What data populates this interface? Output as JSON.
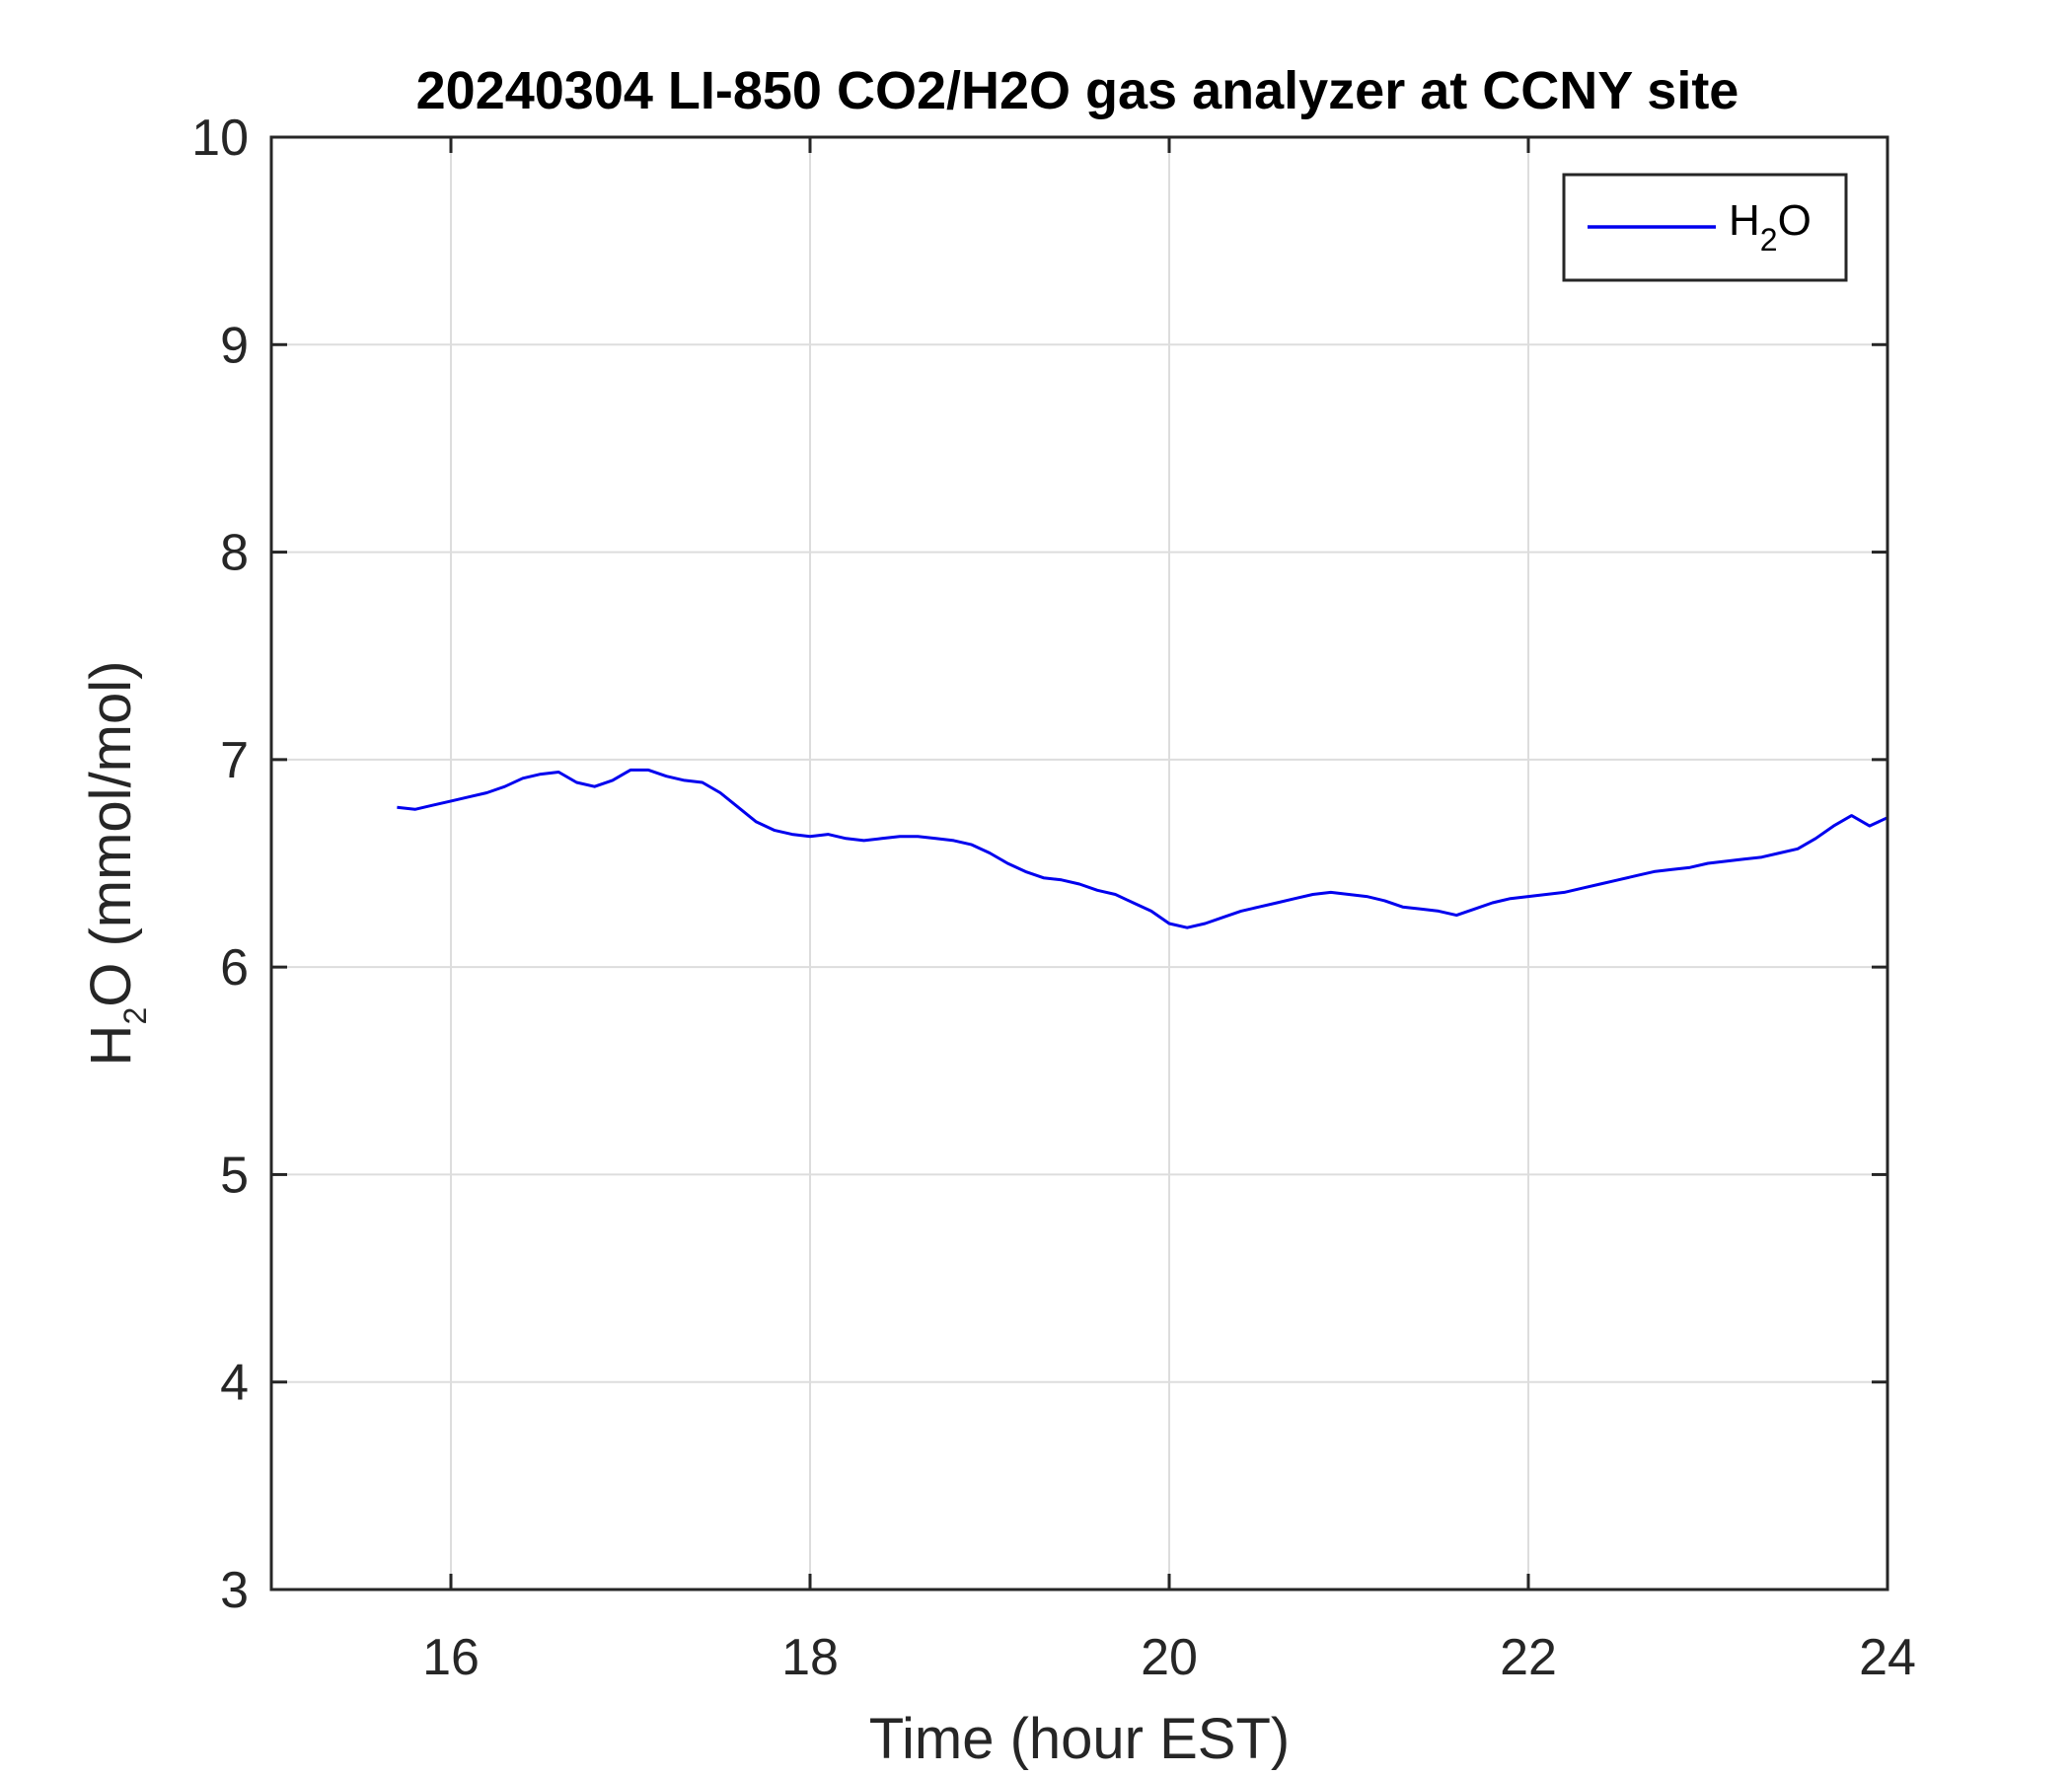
{
  "chart_data": {
    "type": "line",
    "title": "20240304 LI-850 CO2/H2O gas analyzer at CCNY site",
    "xlabel": "Time (hour EST)",
    "ylabel": {
      "prefix": "H",
      "sub": "2",
      "suffix": "O (mmol/mol)"
    },
    "xlim": [
      15,
      24
    ],
    "ylim": [
      3,
      10
    ],
    "xticks": [
      16,
      18,
      20,
      22,
      24
    ],
    "yticks": [
      3,
      4,
      5,
      6,
      7,
      8,
      9,
      10
    ],
    "grid": true,
    "legend_position": "top-right",
    "colors": {
      "line": "#0000ee",
      "grid": "#dddddd",
      "axis": "#262626"
    },
    "series": [
      {
        "name": {
          "prefix": "H",
          "sub": "2",
          "suffix": "O"
        },
        "x": [
          15.7,
          15.8,
          15.9,
          16.0,
          16.1,
          16.2,
          16.3,
          16.4,
          16.5,
          16.6,
          16.7,
          16.8,
          16.9,
          17.0,
          17.1,
          17.2,
          17.3,
          17.4,
          17.5,
          17.6,
          17.7,
          17.8,
          17.9,
          18.0,
          18.1,
          18.2,
          18.3,
          18.4,
          18.5,
          18.6,
          18.7,
          18.8,
          18.9,
          19.0,
          19.1,
          19.2,
          19.3,
          19.4,
          19.5,
          19.6,
          19.7,
          19.8,
          19.9,
          20.0,
          20.1,
          20.2,
          20.3,
          20.4,
          20.5,
          20.6,
          20.7,
          20.8,
          20.9,
          21.0,
          21.1,
          21.2,
          21.3,
          21.4,
          21.5,
          21.6,
          21.7,
          21.8,
          21.9,
          22.0,
          22.1,
          22.2,
          22.3,
          22.4,
          22.5,
          22.6,
          22.7,
          22.8,
          22.9,
          23.0,
          23.1,
          23.2,
          23.3,
          23.4,
          23.5,
          23.6,
          23.7,
          23.8,
          23.9,
          24.0
        ],
        "y": [
          6.77,
          6.76,
          6.78,
          6.8,
          6.82,
          6.84,
          6.87,
          6.91,
          6.93,
          6.94,
          6.89,
          6.87,
          6.9,
          6.95,
          6.95,
          6.92,
          6.9,
          6.89,
          6.84,
          6.77,
          6.7,
          6.66,
          6.64,
          6.63,
          6.64,
          6.62,
          6.61,
          6.62,
          6.63,
          6.63,
          6.62,
          6.61,
          6.59,
          6.55,
          6.5,
          6.46,
          6.43,
          6.42,
          6.4,
          6.37,
          6.35,
          6.31,
          6.27,
          6.21,
          6.19,
          6.21,
          6.24,
          6.27,
          6.29,
          6.31,
          6.33,
          6.35,
          6.36,
          6.35,
          6.34,
          6.32,
          6.29,
          6.28,
          6.27,
          6.25,
          6.28,
          6.31,
          6.33,
          6.34,
          6.35,
          6.36,
          6.38,
          6.4,
          6.42,
          6.44,
          6.46,
          6.47,
          6.48,
          6.5,
          6.51,
          6.52,
          6.53,
          6.55,
          6.57,
          6.62,
          6.68,
          6.73,
          6.68,
          6.72
        ]
      }
    ]
  }
}
